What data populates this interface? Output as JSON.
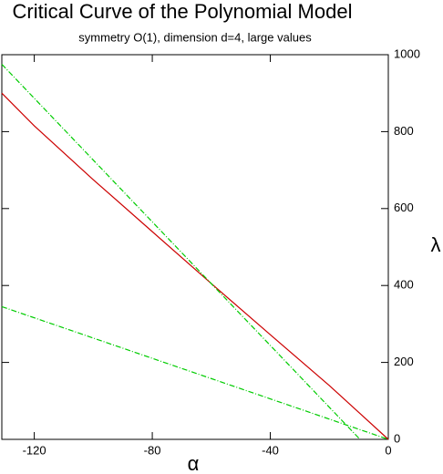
{
  "chart_data": {
    "type": "line",
    "title": "Critical Curve of the Polynomial Model",
    "subtitle": "symmetry O(1), dimension d=4, large values",
    "x_label": "α",
    "y_label": "λ",
    "xlim": [
      -131,
      0
    ],
    "ylim": [
      0,
      1000
    ],
    "xticks": [
      -120,
      -80,
      -40,
      0
    ],
    "yticks": [
      0,
      200,
      400,
      600,
      800,
      1000
    ],
    "series": [
      {
        "color": "#cc0000",
        "dash": false,
        "x": [
          -131,
          -120,
          -100,
          -80,
          -60,
          -40,
          -20,
          -10,
          0
        ],
        "values": [
          900,
          815,
          675,
          540,
          405,
          272,
          140,
          70,
          0
        ]
      },
      {
        "color": "#00cc00",
        "dash": true,
        "x": [
          -131,
          -9.6
        ],
        "values": [
          975,
          0
        ]
      },
      {
        "color": "#00cc00",
        "dash": true,
        "x": [
          -131,
          0
        ],
        "values": [
          345,
          0
        ]
      }
    ]
  }
}
